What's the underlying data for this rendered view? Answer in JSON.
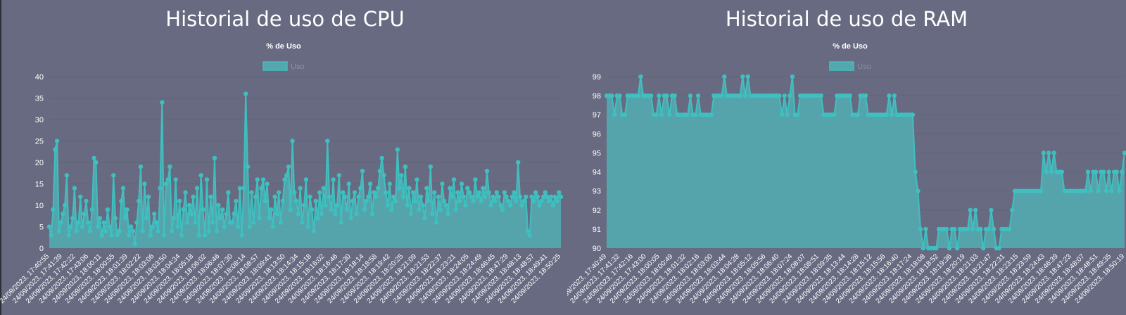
{
  "colors": {
    "background": "#676a80",
    "series_line": "#3fc0c0",
    "series_fill": "#54a7ad",
    "text": "#ffffff",
    "tick_text": "#ffffff",
    "grid": "#5b5e73"
  },
  "cpu": {
    "title": "Historial de uso de CPU",
    "chart_title": "% de Uso",
    "legend_label": "Uso"
  },
  "ram": {
    "title": "Historial de uso de RAM",
    "chart_title": "% de Uso",
    "legend_label": "Uso"
  },
  "chart_data": [
    {
      "type": "area",
      "title": "% de Uso",
      "series": [
        {
          "name": "Uso"
        }
      ],
      "ylim": [
        0,
        40
      ],
      "yticks": [
        0,
        5,
        10,
        15,
        20,
        25,
        30,
        35,
        40
      ],
      "x_tick_labels": [
        "24/09/2023, 17:40:55",
        "24/09/2023, 17:41:39",
        "24/09/2023, 17:42:22",
        "24/09/2023, 17:43:06",
        "24/09/2023, 18:00:11",
        "24/09/2023, 18:00:55",
        "24/09/2023, 18:01:39",
        "24/09/2023, 18:02:22",
        "24/09/2023, 18:03:06",
        "24/09/2023, 18:03:50",
        "24/09/2023, 18:04:34",
        "24/09/2023, 18:05:18",
        "24/09/2023, 18:06:02",
        "24/09/2023, 18:06:46",
        "24/09/2023, 18:07:30",
        "24/09/2023, 18:08:14",
        "24/09/2023, 18:08:57",
        "24/09/2023, 18:09:41",
        "24/09/2023, 18:13:50",
        "24/09/2023, 18:14:34",
        "24/09/2023, 18:15:18",
        "24/09/2023, 18:16:02",
        "24/09/2023, 18:16:46",
        "24/09/2023, 18:17:30",
        "24/09/2023, 18:18:14",
        "24/09/2023, 18:18:58",
        "24/09/2023, 18:19:42",
        "24/09/2023, 18:20:25",
        "24/09/2023, 18:21:09",
        "24/09/2023, 18:21:53",
        "24/09/2023, 18:22:37",
        "24/09/2023, 18:23:21",
        "24/09/2023, 18:24:05",
        "24/09/2023, 18:24:49",
        "24/09/2023, 18:46:45",
        "24/09/2023, 18:47:29",
        "24/09/2023, 18:48:13",
        "24/09/2023, 18:48:57",
        "24/09/2023, 18:49:41",
        "24/09/2023, 18:50:25"
      ],
      "values": [
        5,
        3,
        9,
        23,
        25,
        4,
        6,
        8,
        10,
        17,
        3,
        5,
        7,
        14,
        4,
        6,
        12,
        5,
        8,
        11,
        6,
        4,
        9,
        21,
        20,
        5,
        7,
        3,
        6,
        4,
        9,
        5,
        3,
        17,
        7,
        3,
        4,
        11,
        14,
        7,
        9,
        3,
        5,
        4,
        1,
        6,
        11,
        19,
        4,
        15,
        7,
        12,
        3,
        5,
        8,
        6,
        4,
        14,
        34,
        3,
        15,
        16,
        19,
        4,
        7,
        16,
        5,
        11,
        3,
        9,
        13,
        6,
        10,
        8,
        12,
        6,
        14,
        3,
        17,
        9,
        3,
        16,
        4,
        12,
        6,
        21,
        4,
        10,
        7,
        9,
        5,
        8,
        13,
        6,
        6,
        8,
        11,
        5,
        14,
        3,
        14,
        36,
        19,
        5,
        13,
        6,
        12,
        16,
        7,
        14,
        16,
        11,
        15,
        7,
        9,
        5,
        12,
        8,
        13,
        6,
        11,
        16,
        17,
        19,
        9,
        25,
        13,
        11,
        8,
        14,
        6,
        10,
        16,
        5,
        12,
        9,
        4,
        11,
        7,
        13,
        8,
        14,
        10,
        25,
        12,
        9,
        16,
        8,
        10,
        17,
        6,
        13,
        12,
        9,
        15,
        7,
        11,
        13,
        8,
        12,
        14,
        18,
        9,
        11,
        12,
        15,
        8,
        13,
        12,
        14,
        18,
        21,
        17,
        13,
        10,
        15,
        9,
        12,
        11,
        23,
        14,
        17,
        12,
        19,
        10,
        14,
        8,
        13,
        11,
        16,
        9,
        12,
        10,
        7,
        14,
        11,
        19,
        8,
        13,
        6,
        12,
        9,
        15,
        11,
        10,
        8,
        14,
        12,
        16,
        9,
        13,
        11,
        15,
        12,
        10,
        14,
        13,
        12,
        11,
        16,
        12,
        13,
        11,
        14,
        12,
        18,
        13,
        10,
        12,
        11,
        13,
        12,
        10,
        9,
        13,
        12,
        11,
        10,
        12,
        13,
        11,
        20,
        12,
        10,
        11,
        12,
        4,
        3,
        12,
        11,
        13,
        12,
        10,
        11,
        12,
        13,
        12,
        11,
        12,
        10,
        12,
        11,
        13,
        12
      ]
    },
    {
      "type": "area",
      "title": "% de Uso",
      "series": [
        {
          "name": "Uso"
        }
      ],
      "ylim": [
        90,
        99
      ],
      "yticks": [
        90,
        91,
        92,
        93,
        94,
        95,
        96,
        97,
        98,
        99
      ],
      "x_tick_labels": [
        "24/09/2023, 17:40:49",
        "24/09/2023, 17:41:32",
        "24/09/2023, 17:42:16",
        "24/09/2023, 17:43:00",
        "24/09/2023, 18:00:05",
        "24/09/2023, 18:00:49",
        "24/09/2023, 18:01:32",
        "24/09/2023, 18:02:16",
        "24/09/2023, 18:03:00",
        "24/09/2023, 18:03:44",
        "24/09/2023, 18:04:28",
        "24/09/2023, 18:05:12",
        "24/09/2023, 18:05:56",
        "24/09/2023, 18:06:40",
        "24/09/2023, 18:07:24",
        "24/09/2023, 18:08:07",
        "24/09/2023, 18:08:51",
        "24/09/2023, 18:09:35",
        "24/09/2023, 18:13:44",
        "24/09/2023, 18:14:28",
        "24/09/2023, 18:15:12",
        "24/09/2023, 18:15:56",
        "24/09/2023, 18:16:40",
        "24/09/2023, 18:17:24",
        "24/09/2023, 18:18:08",
        "24/09/2023, 18:18:52",
        "24/09/2023, 18:19:36",
        "24/09/2023, 18:20:19",
        "24/09/2023, 18:21:03",
        "24/09/2023, 18:21:47",
        "24/09/2023, 18:22:31",
        "24/09/2023, 18:23:15",
        "24/09/2023, 18:23:59",
        "24/09/2023, 18:24:43",
        "24/09/2023, 18:46:39",
        "24/09/2023, 18:47:23",
        "24/09/2023, 18:48:07",
        "24/09/2023, 18:48:51",
        "24/09/2023, 18:49:35",
        "24/09/2023, 18:50:19"
      ],
      "values": [
        98,
        98,
        98,
        97,
        98,
        98,
        97,
        97,
        98,
        98,
        98,
        98,
        98,
        99,
        98,
        98,
        98,
        98,
        97,
        97,
        98,
        97,
        98,
        98,
        97,
        98,
        98,
        97,
        97,
        97,
        97,
        97,
        98,
        97,
        97,
        98,
        97,
        97,
        97,
        97,
        97,
        98,
        98,
        98,
        98,
        99,
        98,
        98,
        98,
        98,
        98,
        98,
        99,
        98,
        99,
        98,
        98,
        98,
        98,
        98,
        98,
        98,
        98,
        98,
        98,
        98,
        98,
        97,
        98,
        97,
        98,
        99,
        97,
        97,
        98,
        98,
        98,
        98,
        98,
        98,
        98,
        98,
        98,
        97,
        97,
        97,
        97,
        97,
        98,
        98,
        98,
        98,
        98,
        98,
        97,
        97,
        97,
        98,
        98,
        98,
        97,
        97,
        97,
        97,
        97,
        97,
        97,
        97,
        98,
        97,
        98,
        97,
        97,
        97,
        97,
        97,
        97,
        97,
        94,
        93,
        91,
        90,
        91,
        90,
        90,
        90,
        90,
        91,
        91,
        91,
        91,
        90,
        91,
        91,
        90,
        91,
        91,
        91,
        91,
        92,
        91,
        92,
        91,
        91,
        90,
        91,
        91,
        92,
        91,
        90,
        90,
        91,
        91,
        91,
        91,
        92,
        93,
        93,
        93,
        93,
        93,
        93,
        93,
        93,
        93,
        93,
        93,
        95,
        94,
        95,
        94,
        95,
        94,
        94,
        94,
        93,
        93,
        93,
        93,
        93,
        93,
        93,
        93,
        93,
        94,
        93,
        94,
        94,
        93,
        94,
        94,
        93,
        94,
        93,
        94,
        94,
        93,
        94,
        95
      ]
    }
  ]
}
